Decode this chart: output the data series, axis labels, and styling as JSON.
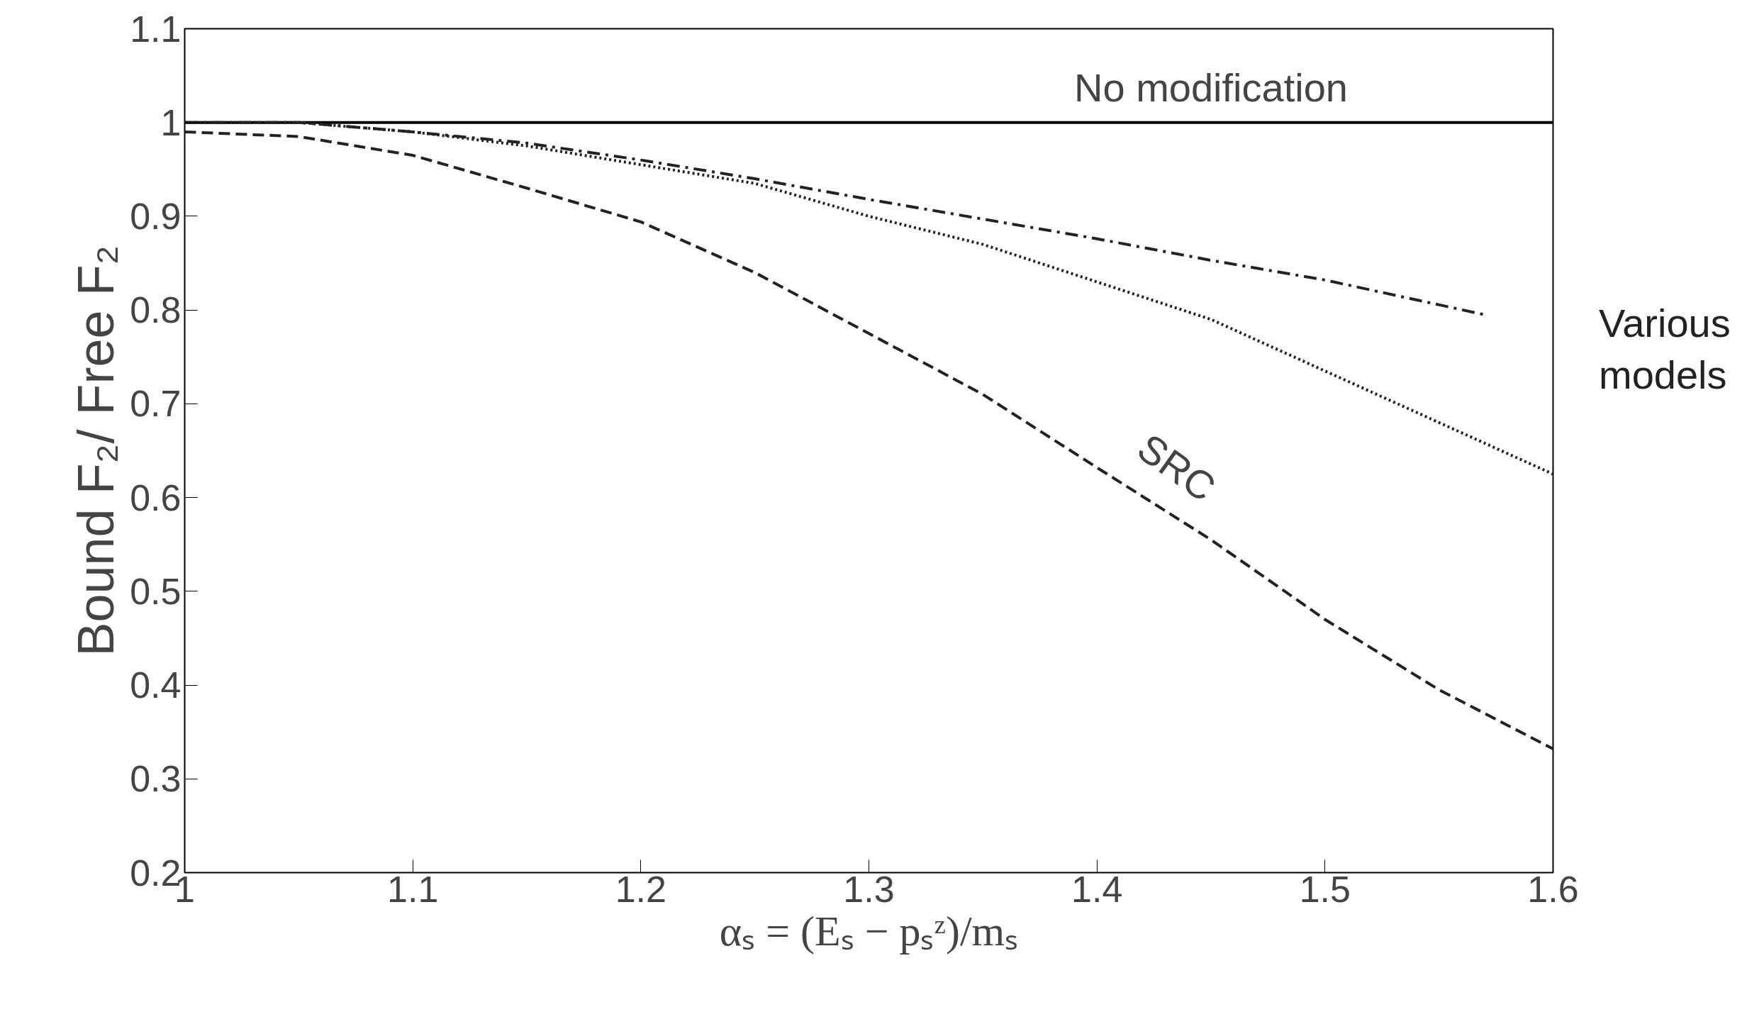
{
  "chart_data": {
    "type": "line",
    "xlabel": "αₛ = (Eₛ − pₛᶻ)/mₛ",
    "ylabel": "Bound F₂/ Free F₂",
    "xlim": [
      1,
      1.6
    ],
    "ylim": [
      0.2,
      1.1
    ],
    "xticks": [
      1,
      1.1,
      1.2,
      1.3,
      1.4,
      1.5,
      1.6
    ],
    "yticks": [
      {
        "value": 0.2,
        "label": "0.2"
      },
      {
        "value": 0.3,
        "label": "0.3"
      },
      {
        "value": 0.4,
        "label": "0.4"
      },
      {
        "value": 0.5,
        "label": "0.5"
      },
      {
        "value": 0.6,
        "label": "0.6"
      },
      {
        "value": 0.7,
        "label": "0.7"
      },
      {
        "value": 0.8,
        "label": "0.8"
      },
      {
        "value": 0.9,
        "label": "0.9"
      },
      {
        "value": 1,
        "label": "1"
      },
      {
        "value": 1.1,
        "label": "1.1"
      }
    ],
    "grid": false,
    "marker": "none",
    "series": [
      {
        "color": "#000000",
        "line_style": "solid",
        "x": [
          1,
          1.6
        ],
        "values": [
          1,
          1
        ]
      },
      {
        "color": "#222222",
        "line_style": "dashed",
        "x": [
          1,
          1.05,
          1.1,
          1.15,
          1.2,
          1.25,
          1.3,
          1.35,
          1.4,
          1.45,
          1.5,
          1.55,
          1.6
        ],
        "values": [
          0.99,
          0.985,
          0.965,
          0.93,
          0.894,
          0.84,
          0.775,
          0.71,
          0.632,
          0.555,
          0.47,
          0.395,
          0.332
        ]
      },
      {
        "color": "#222222",
        "line_style": "dotted",
        "x": [
          1,
          1.05,
          1.1,
          1.15,
          1.2,
          1.25,
          1.3,
          1.35,
          1.4,
          1.45,
          1.5,
          1.55,
          1.6
        ],
        "values": [
          1.0,
          1.0,
          0.99,
          0.975,
          0.955,
          0.935,
          0.9,
          0.87,
          0.83,
          0.79,
          0.735,
          0.68,
          0.625
        ]
      },
      {
        "color": "#222222",
        "line_style": "dashdot",
        "x": [
          1,
          1.05,
          1.1,
          1.15,
          1.2,
          1.25,
          1.3,
          1.35,
          1.4,
          1.45,
          1.5,
          1.57
        ],
        "values": [
          1.0,
          1.0,
          0.99,
          0.978,
          0.96,
          0.94,
          0.918,
          0.897,
          0.876,
          0.853,
          0.832,
          0.795
        ]
      }
    ],
    "annotations": [
      "No modification",
      "SRC",
      "Various models"
    ]
  }
}
